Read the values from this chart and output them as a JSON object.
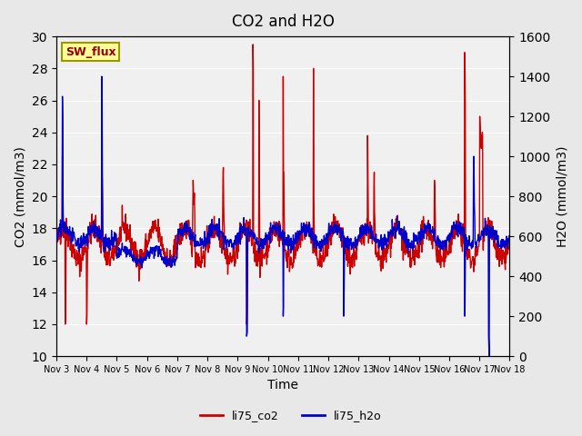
{
  "title": "CO2 and H2O",
  "xlabel": "Time",
  "ylabel_left": "CO2 (mmol/m3)",
  "ylabel_right": "H2O (mmol/m3)",
  "ylim_left": [
    10,
    30
  ],
  "ylim_right": [
    0,
    1600
  ],
  "yticks_left": [
    10,
    12,
    14,
    16,
    18,
    20,
    22,
    24,
    26,
    28,
    30
  ],
  "yticks_right": [
    0,
    200,
    400,
    600,
    800,
    1000,
    1200,
    1400,
    1600
  ],
  "xtick_labels": [
    "Nov 3",
    "Nov 4",
    "Nov 5",
    "Nov 6",
    "Nov 7",
    "Nov 8",
    "Nov 9",
    "Nov 10",
    "Nov 11",
    "Nov 12",
    "Nov 13",
    "Nov 14",
    "Nov 15",
    "Nov 16",
    "Nov 17",
    "Nov 18"
  ],
  "co2_color": "#cc0000",
  "h2o_color": "#0000cc",
  "bg_color": "#e8e8e8",
  "plot_bg_color": "#f0f0f0",
  "sw_flux_label": "SW_flux",
  "sw_flux_bg": "#ffff99",
  "sw_flux_border": "#999900",
  "sw_flux_text_color": "#990000",
  "legend_co2": "li75_co2",
  "legend_h2o": "li75_h2o",
  "linewidth": 1.0,
  "n_days": 15,
  "pts_per_day": 96
}
